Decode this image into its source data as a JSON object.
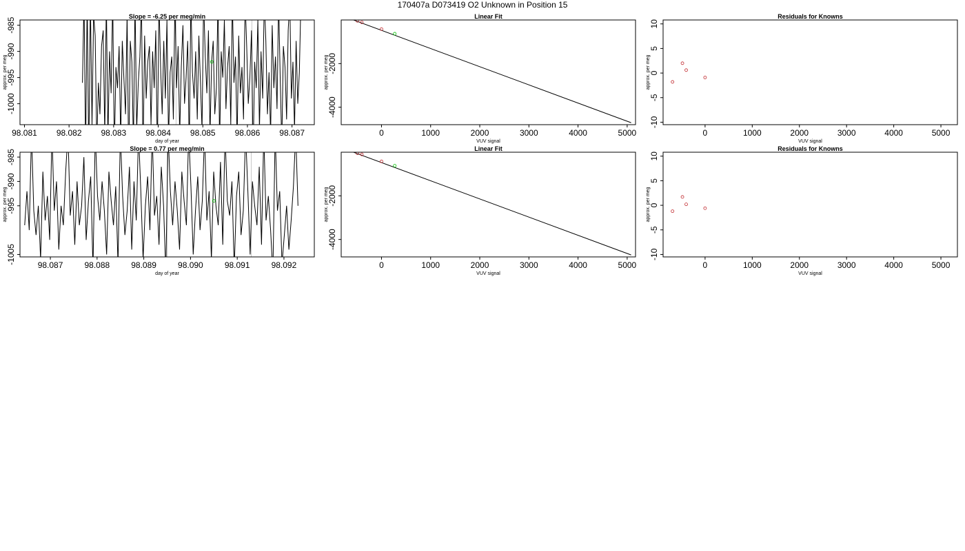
{
  "page_title": "170407a     D073419   O2 Unknown in Position  15",
  "colors": {
    "series": "#000000",
    "known_points": "#c0282d",
    "unknown_point": "#00c000",
    "guide_lines": "#c8c8c8"
  },
  "chart_data": [
    {
      "id": "trace-1",
      "type": "line",
      "title": "Slope =  -6.25  per meg/min",
      "xlabel": "day of year",
      "ylabel": "approx. per meg",
      "xlim": [
        98.0809,
        98.0875
      ],
      "ylim": [
        -1004,
        -984
      ],
      "xticks": [
        "98.081",
        "98.082",
        "98.083",
        "98.084",
        "98.085",
        "98.086",
        "98.087"
      ],
      "yticks": [
        "-985",
        "-990",
        "-995",
        "-1000"
      ],
      "x_start": 98.0823,
      "x_end": 98.0872,
      "y": [
        -996,
        -980,
        -1009,
        -980,
        -1011,
        -980,
        -1004,
        -983,
        -987,
        -1008,
        -996,
        -1002,
        -989,
        -986,
        -1006,
        -980,
        -1007,
        -990,
        -998,
        -980,
        -1009,
        -993,
        -997,
        -989,
        -1007,
        -988,
        -995,
        -1002,
        -983,
        -1012,
        -988,
        -992,
        -1008,
        -980,
        -1005,
        -996,
        -991,
        -980,
        -1011,
        -987,
        -999,
        -992,
        -989,
        -1004,
        -990,
        -997,
        -986,
        -1010,
        -980,
        -993,
        -1002,
        -988,
        -999,
        -984,
        -1007,
        -994,
        -991,
        -1003,
        -980,
        -997,
        -989,
        -1006,
        -993,
        -985,
        -1000,
        -995,
        -988,
        -1009,
        -980,
        -994,
        -999,
        -990,
        -1003,
        -987,
        -996,
        -1005,
        -980,
        -991,
        -998,
        -986,
        -1006,
        -992,
        -988,
        -1002,
        -997,
        -980,
        -1008,
        -990,
        -995,
        -984,
        -1001,
        -993,
        -989,
        -1004,
        -980,
        -996,
        -991,
        -1007,
        -987,
        -998,
        -993,
        -1003,
        -980,
        -989,
        -1000,
        -995,
        -986,
        -1010,
        -992,
        -997,
        -984,
        -1005,
        -990,
        -999,
        -980,
        -988,
        -1002,
        -994,
        -1006,
        -985,
        -997,
        -991,
        -1001,
        -980,
        -995,
        -1008,
        -989,
        -993,
        -1003,
        -986,
        -980,
        -999,
        -992,
        -1005,
        -988,
        -1000,
        -994,
        -980
      ],
      "vlines": [
        98.0844,
        98.0861
      ],
      "marker": {
        "x": 98.0852,
        "y": -992
      }
    },
    {
      "id": "fit-1",
      "type": "line",
      "title": "Linear Fit",
      "xlabel": "VUV signal",
      "ylabel": "approx. per meg",
      "xlim": [
        -820,
        5170
      ],
      "ylim": [
        -4800,
        0
      ],
      "xticks": [
        "0",
        "1000",
        "2000",
        "3000",
        "4000",
        "5000"
      ],
      "yticks": [
        "-2000",
        "-4000"
      ],
      "line": [
        [
          -690,
          100
        ],
        [
          5080,
          -4710
        ]
      ],
      "known_points": [
        [
          -690,
          100
        ],
        [
          -490,
          -40
        ],
        [
          -400,
          -110
        ],
        [
          0,
          -420
        ]
      ],
      "unknown_point": [
        270,
        -630
      ]
    },
    {
      "id": "resid-1",
      "type": "scatter",
      "title": "Residuals for Knowns",
      "xlabel": "VUV signal",
      "ylabel": "approx. per meg",
      "xlim": [
        -890,
        5350
      ],
      "ylim": [
        -10.5,
        10.8
      ],
      "xticks": [
        "0",
        "1000",
        "2000",
        "3000",
        "4000",
        "5000"
      ],
      "yticks": [
        "10",
        "5",
        "0",
        "-5",
        "-10"
      ],
      "points": [
        [
          -690,
          -1.8
        ],
        [
          -480,
          2.0
        ],
        [
          -400,
          0.6
        ],
        [
          0,
          -0.9
        ]
      ]
    },
    {
      "id": "trace-2",
      "type": "line",
      "title": "Slope =  0.77  per meg/min",
      "xlabel": "day of year",
      "ylabel": "approx. per meg",
      "xlim": [
        98.08635,
        98.09265
      ],
      "ylim": [
        -1005.5,
        -984
      ],
      "xticks": [
        "98.087",
        "98.088",
        "98.089",
        "98.090",
        "98.091",
        "98.092"
      ],
      "yticks": [
        "-985",
        "-990",
        "-995",
        "-1005"
      ],
      "x_start": 98.08645,
      "x_end": 98.0923,
      "y": [
        -999,
        -992,
        -1000,
        -980,
        -996,
        -1001,
        -995,
        -1006,
        -988,
        -998,
        -993,
        -1002,
        -980,
        -996,
        -990,
        -1004,
        -995,
        -999,
        -988,
        -980,
        -997,
        -992,
        -1003,
        -990,
        -999,
        -995,
        -985,
        -1002,
        -994,
        -989,
        -1008,
        -980,
        -993,
        -998,
        -990,
        -996,
        -1005,
        -988,
        -994,
        -999,
        -991,
        -1007,
        -980,
        -993,
        -1001,
        -996,
        -987,
        -1004,
        -990,
        -998,
        -980,
        -992,
        -1006,
        -995,
        -989,
        -1000,
        -980,
        -997,
        -993,
        -1003,
        -987,
        -995,
        -1009,
        -980,
        -992,
        -999,
        -990,
        -996,
        -1004,
        -988,
        -994,
        -999,
        -980,
        -991,
        -1005,
        -996,
        -989,
        -1000,
        -994,
        -980,
        -998,
        -992,
        -1006,
        -988,
        -995,
        -999,
        -986,
        -1003,
        -980,
        -994,
        -997,
        -990,
        -1008,
        -993,
        -988,
        -1001,
        -996,
        -980,
        -992,
        -1005,
        -990,
        -995,
        -999,
        -987,
        -1003,
        -980,
        -998,
        -993,
        -1000,
        -1009,
        -980,
        -996,
        -992,
        -1007,
        -1001,
        -995,
        -1004,
        -998,
        -991,
        -980,
        -995
      ],
      "vlines": [
        98.0895,
        98.0913
      ],
      "marker": {
        "x": 98.0905,
        "y": -994
      }
    },
    {
      "id": "fit-2",
      "type": "line",
      "title": "Linear Fit",
      "xlabel": "VUV signal",
      "ylabel": "approx. per meg",
      "xlim": [
        -820,
        5170
      ],
      "ylim": [
        -4800,
        0
      ],
      "xticks": [
        "0",
        "1000",
        "2000",
        "3000",
        "4000",
        "5000"
      ],
      "yticks": [
        "-2000",
        "-4000"
      ],
      "line": [
        [
          -690,
          100
        ],
        [
          5080,
          -4710
        ]
      ],
      "known_points": [
        [
          -690,
          100
        ],
        [
          -490,
          -50
        ],
        [
          -400,
          -100
        ],
        [
          0,
          -420
        ]
      ],
      "unknown_point": [
        270,
        -620
      ]
    },
    {
      "id": "resid-2",
      "type": "scatter",
      "title": "Residuals for Knowns",
      "xlabel": "VUV signal",
      "ylabel": "approx. per meg",
      "xlim": [
        -890,
        5350
      ],
      "ylim": [
        -10.5,
        10.8
      ],
      "xticks": [
        "0",
        "1000",
        "2000",
        "3000",
        "4000",
        "5000"
      ],
      "yticks": [
        "10",
        "5",
        "0",
        "-5",
        "-10"
      ],
      "points": [
        [
          -690,
          -1.2
        ],
        [
          -480,
          1.7
        ],
        [
          -400,
          0.2
        ],
        [
          0,
          -0.6
        ]
      ]
    }
  ]
}
